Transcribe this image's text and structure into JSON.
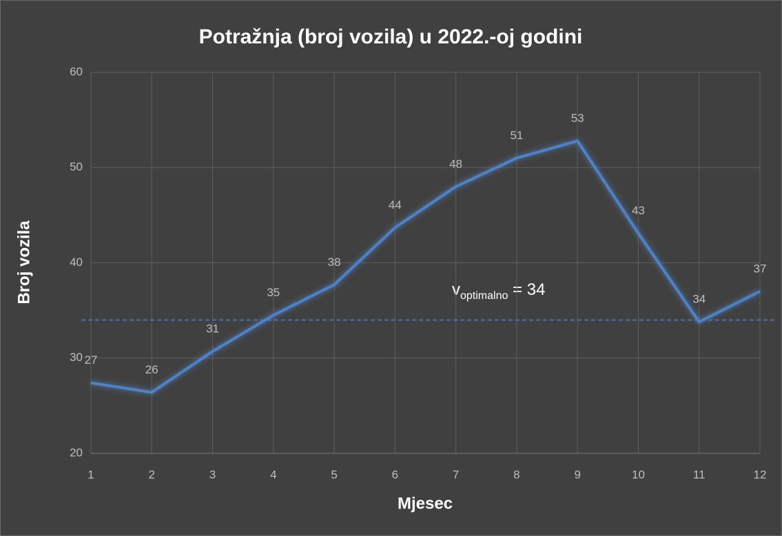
{
  "chart_data": {
    "type": "line",
    "title": "Potražnja (broj vozila) u 2022.-oj godini",
    "x_label": "Mjesec",
    "y_label": "Broj vozila",
    "x": [
      1,
      2,
      3,
      4,
      5,
      6,
      7,
      8,
      9,
      10,
      11,
      12
    ],
    "series": [
      {
        "name": "Potražnja",
        "color": "#4f81c4",
        "values": [
          27.4,
          26.4,
          30.7,
          34.5,
          37.7,
          43.7,
          48.0,
          51.0,
          52.8,
          43.1,
          33.8,
          37.0
        ],
        "value_labels": [
          "27",
          "26",
          "31",
          "35",
          "38",
          "44",
          "48",
          "51",
          "53",
          "43",
          "34",
          "37"
        ]
      }
    ],
    "xlim": [
      1,
      12
    ],
    "xticks": [
      1,
      2,
      3,
      4,
      5,
      6,
      7,
      8,
      9,
      10,
      11,
      12
    ],
    "ylim": [
      20,
      60
    ],
    "yticks": [
      20,
      30,
      40,
      50,
      60
    ],
    "grid": true,
    "reference_line": {
      "value": 34,
      "color": "#4f81c4",
      "style": "dashed"
    },
    "annotation": {
      "main": "v",
      "sub": "optimalno",
      "rest": " = 34"
    }
  }
}
